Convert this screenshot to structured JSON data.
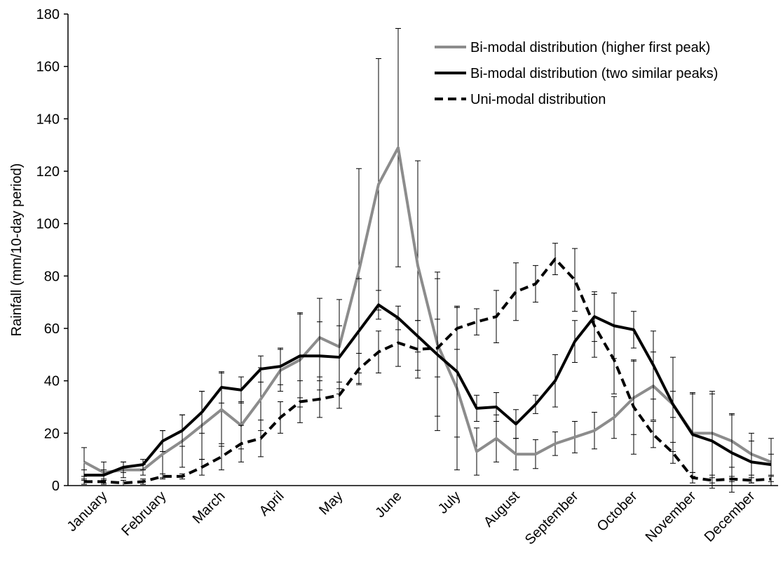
{
  "chart_data": {
    "type": "line",
    "y_label": "Rainfall (mm/10-day period)",
    "categories": [
      null,
      "January",
      null,
      null,
      "February",
      null,
      null,
      "March",
      null,
      null,
      "April",
      null,
      null,
      "May",
      null,
      null,
      "June",
      null,
      null,
      "July",
      null,
      null,
      "August",
      null,
      null,
      "September",
      null,
      null,
      "October",
      null,
      null,
      "November",
      null,
      null,
      "December",
      null
    ],
    "series": [
      {
        "name": "Bi-modal distribution (higher first peak)",
        "color": "#8c8c8c",
        "dashed": false,
        "values": [
          9,
          5,
          6,
          6,
          12,
          17,
          23,
          29,
          23,
          33,
          44,
          48,
          56.5,
          53,
          82,
          115,
          129,
          84,
          54,
          37,
          13,
          18,
          12,
          12,
          16,
          18.5,
          21,
          26,
          33.5,
          38,
          31,
          20,
          20,
          17,
          12,
          9
        ],
        "errors": [
          5.5,
          4,
          3,
          2,
          9,
          10,
          13,
          14,
          9,
          12,
          8,
          18,
          15,
          18,
          39,
          48,
          45.5,
          40,
          27.5,
          31,
          9,
          9,
          6,
          5.5,
          4.5,
          6,
          7,
          8,
          14,
          13,
          18,
          15,
          16,
          10,
          8,
          9
        ]
      },
      {
        "name": "Bi-modal distribution (two similar peaks)",
        "color": "#000000",
        "dashed": false,
        "values": [
          4,
          4,
          7,
          8,
          17,
          21,
          28,
          37.5,
          36.5,
          44.5,
          45.5,
          49.5,
          49.5,
          49,
          59,
          69,
          64,
          57,
          50,
          43.5,
          29.5,
          30,
          23.5,
          31,
          40,
          55,
          64.5,
          61,
          59.5,
          46,
          31,
          19.5,
          17,
          12.5,
          9,
          8
        ],
        "errors": [
          2,
          2,
          2,
          2,
          4,
          6,
          8,
          6,
          5,
          5,
          7,
          16,
          13,
          12,
          20,
          5.5,
          4.5,
          6,
          29,
          25,
          5,
          5.5,
          5.5,
          3.5,
          10,
          8,
          9.5,
          12.5,
          7,
          13,
          5,
          16,
          18,
          15,
          8,
          4
        ]
      },
      {
        "name": "Uni-modal distribution",
        "color": "#000000",
        "dashed": true,
        "values": [
          1.5,
          1.5,
          1,
          1.5,
          3.5,
          3.5,
          7,
          11,
          16,
          18,
          26,
          32,
          33,
          34.5,
          44.5,
          51,
          54.5,
          52,
          52.5,
          60,
          62.5,
          64.5,
          74,
          77,
          86.5,
          78.5,
          61,
          48,
          30,
          19.5,
          12.5,
          3,
          2,
          2.5,
          2,
          2.5
        ],
        "errors": [
          1,
          1,
          1,
          1,
          1,
          1,
          3,
          5,
          7,
          7,
          6,
          8,
          7,
          5,
          6,
          8,
          9,
          11,
          11,
          8,
          5,
          10,
          11,
          7,
          6,
          12,
          12,
          13,
          18,
          5,
          4,
          2,
          1,
          1,
          1,
          1
        ]
      }
    ],
    "ylim": [
      0,
      180
    ],
    "yticks": [
      0,
      20,
      40,
      60,
      80,
      100,
      120,
      140,
      160,
      180
    ],
    "grid": false,
    "legend": "top-right"
  }
}
